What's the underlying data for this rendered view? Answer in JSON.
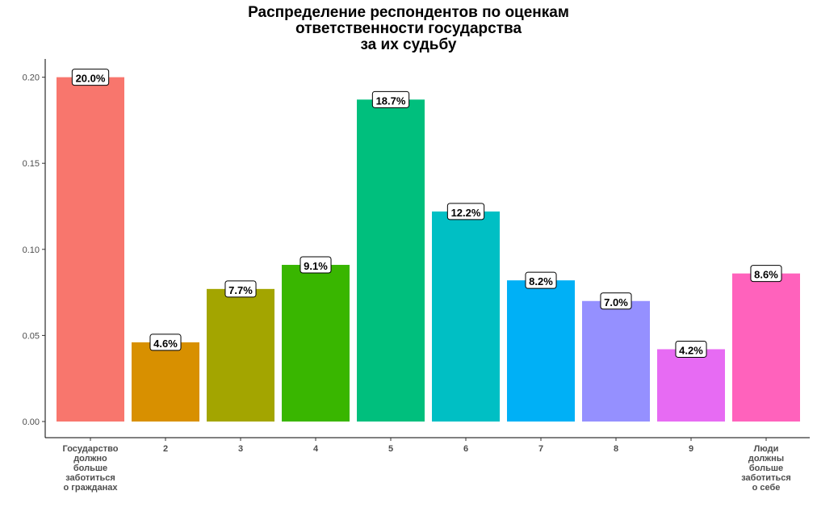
{
  "chart_data": {
    "type": "bar",
    "title_lines": [
      "Распределение респондентов по оценкам",
      "ответственности государства",
      "за их судьбу"
    ],
    "categories": [
      "Государство должно больше заботиться о гражданах",
      "2",
      "3",
      "4",
      "5",
      "6",
      "7",
      "8",
      "9",
      "Люди должны больше заботиться о себе"
    ],
    "category_label_lines": [
      [
        "Государство",
        "должно",
        "больше",
        "заботиться",
        "о гражданах"
      ],
      [
        "2"
      ],
      [
        "3"
      ],
      [
        "4"
      ],
      [
        "5"
      ],
      [
        "6"
      ],
      [
        "7"
      ],
      [
        "8"
      ],
      [
        "9"
      ],
      [
        "Люди",
        "должны",
        "больше",
        "заботиться",
        "о себе"
      ]
    ],
    "values": [
      0.2,
      0.046,
      0.077,
      0.091,
      0.187,
      0.122,
      0.082,
      0.07,
      0.042,
      0.086
    ],
    "data_labels": [
      "20.0%",
      "4.6%",
      "7.7%",
      "9.1%",
      "18.7%",
      "12.2%",
      "8.2%",
      "7.0%",
      "4.2%",
      "8.6%"
    ],
    "colors": [
      "#F8766D",
      "#D89000",
      "#A3A500",
      "#39B600",
      "#00BF7D",
      "#00BFC4",
      "#00B0F6",
      "#9590FF",
      "#E76BF3",
      "#FF62BC"
    ],
    "ylim": [
      0,
      0.21
    ],
    "yticks": [
      0.0,
      0.05,
      0.1,
      0.15,
      0.2
    ],
    "ytick_labels": [
      "0.00",
      "0.05",
      "0.10",
      "0.15",
      "0.20"
    ],
    "xlabel": "",
    "ylabel": "",
    "grid": false,
    "legend": "none"
  }
}
